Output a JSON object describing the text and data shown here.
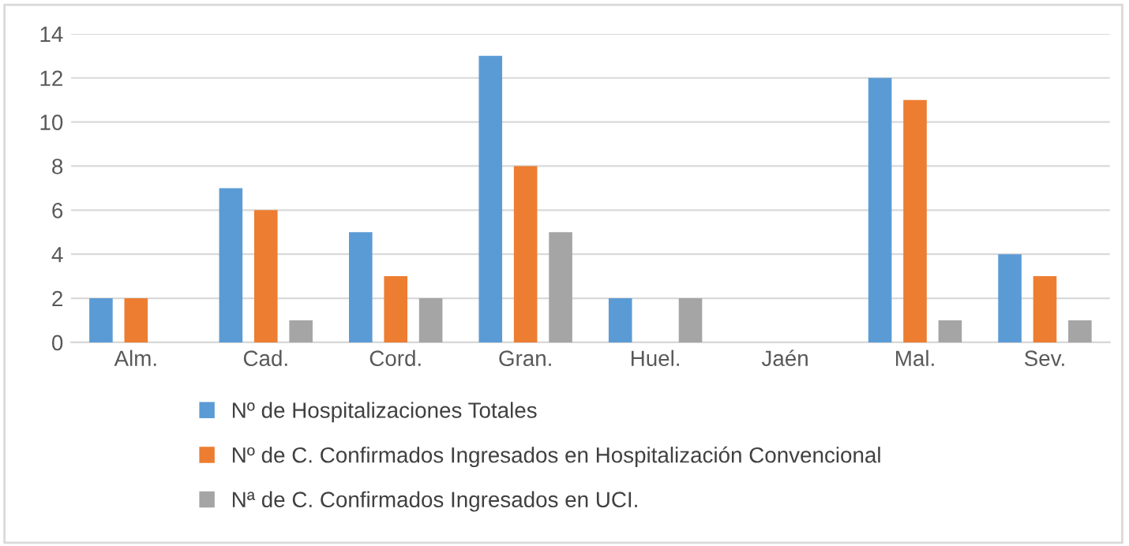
{
  "chart_data": {
    "type": "bar",
    "categories": [
      "Alm.",
      "Cad.",
      "Cord.",
      "Gran.",
      "Huel.",
      "Jaén",
      "Mal.",
      "Sev."
    ],
    "series": [
      {
        "name": "Nº de Hospitalizaciones Totales",
        "color": "#5b9bd5",
        "values": [
          2,
          7,
          5,
          13,
          2,
          0,
          12,
          4
        ]
      },
      {
        "name": "Nº de C. Confirmados Ingresados en Hospitalización Convencional",
        "color": "#ed7d31",
        "values": [
          2,
          6,
          3,
          8,
          0,
          0,
          11,
          3
        ]
      },
      {
        "name": "Nª de C. Confirmados Ingresados en UCI.",
        "color": "#a5a5a5",
        "values": [
          0,
          1,
          2,
          5,
          2,
          0,
          1,
          1
        ]
      }
    ],
    "ylim": [
      0,
      14
    ],
    "yticks": [
      0,
      2,
      4,
      6,
      8,
      10,
      12,
      14
    ],
    "grid": "y",
    "legend": "bottom"
  }
}
